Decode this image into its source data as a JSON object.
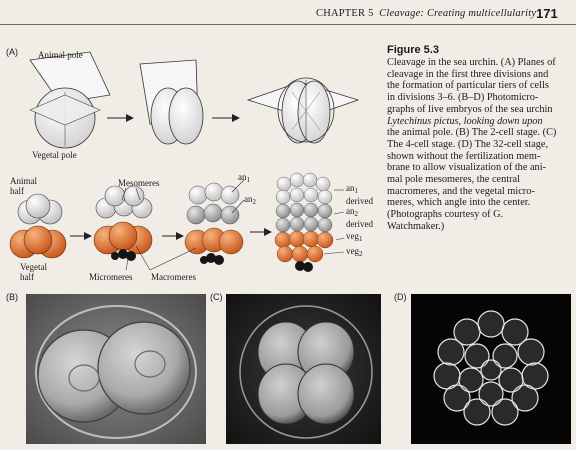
{
  "header": {
    "chapter": "CHAPTER 5",
    "title": "Cleavage: Creating multicellularity",
    "page_number": "171"
  },
  "figure": {
    "label": "Figure 5.3",
    "caption_lines": [
      "Cleavage in the sea urchin. (A) Planes of",
      "cleavage in the first three divisions and",
      "the formation of particular tiers of cells",
      "in divisions 3–6. (B–D) Photomicro-",
      "graphs of live embryos of the sea urchin",
      "Lytechinus pictus, looking down upon",
      "the animal pole. (B) The 2-cell stage. (C)",
      "The 4-cell stage. (D) The 32-cell stage,",
      "shown without the fertilization mem-",
      "brane to allow visualization of the ani-",
      "mal pole mesomeres, the central",
      "macromeres, and the vegetal micro-",
      "meres, which angle into the center.",
      "(Photographs courtesy of G.",
      "Watchmaker.)"
    ]
  },
  "panel_a": {
    "letter": "(A)",
    "animal_pole": "Animal pole",
    "vegetal_pole": "Vegetal pole",
    "animal_half": [
      "Animal",
      "half"
    ],
    "vegetal_half": [
      "Vegetal",
      "half"
    ],
    "mesomeres": "Mesomeres",
    "micromeres": "Micromeres",
    "macromeres": "Macromeres",
    "an1": "an",
    "an2": "an",
    "an1_derived": [
      "an",
      "derived"
    ],
    "an2_derived": [
      "an",
      "derived"
    ],
    "veg1": "veg",
    "veg2": "veg",
    "sub1": "1",
    "sub2": "2"
  },
  "panels": {
    "b": "(B)",
    "c": "(C)",
    "d": "(D)"
  },
  "colors": {
    "page": "#f1ede6",
    "orange": "#d4692a",
    "gray_cell": "#c9c9c9",
    "white_cell": "#f4f4f4"
  }
}
